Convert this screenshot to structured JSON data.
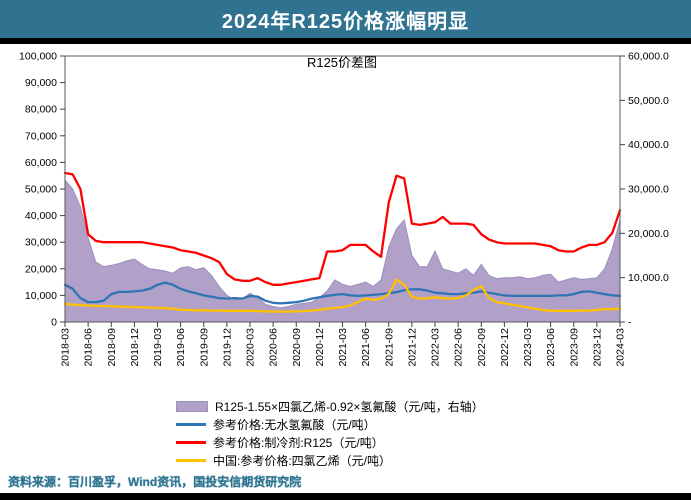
{
  "header": {
    "title": "2024年R125价格涨幅明显"
  },
  "source": {
    "text": "资料来源：百川盈孚，Wind资讯，国投安信期货研究院"
  },
  "theme": {
    "header_bg": "#2F7391",
    "header_text": "#FFFFFF",
    "divider": "#000000",
    "source_text": "#2E7490",
    "plot_border": "#595959",
    "axis_text": "#000000"
  },
  "chart_data": {
    "type": "line+area",
    "title": "R125价差图",
    "grid": false,
    "legend_position": "bottom",
    "x_label_rotation": -90,
    "x_tick_labels": [
      "2018-03",
      "2018-06",
      "2018-09",
      "2018-12",
      "2019-03",
      "2019-06",
      "2019-09",
      "2019-12",
      "2020-03",
      "2020-06",
      "2020-09",
      "2020-12",
      "2021-03",
      "2021-06",
      "2021-09",
      "2021-12",
      "2022-03",
      "2022-06",
      "2022-09",
      "2022-12",
      "2023-03",
      "2023-06",
      "2023-09",
      "2023-12",
      "2024-03"
    ],
    "months_per_tick": 3,
    "left_axis": {
      "min": 0,
      "max": 100000,
      "ticks": [
        {
          "value": 0,
          "label": "0"
        },
        {
          "value": 10000,
          "label": "10,000"
        },
        {
          "value": 20000,
          "label": "20,000"
        },
        {
          "value": 30000,
          "label": "30,000"
        },
        {
          "value": 40000,
          "label": "40,000"
        },
        {
          "value": 50000,
          "label": "50,000"
        },
        {
          "value": 60000,
          "label": "60,000"
        },
        {
          "value": 70000,
          "label": "70,000"
        },
        {
          "value": 80000,
          "label": "80,000"
        },
        {
          "value": 90000,
          "label": "90,000"
        },
        {
          "value": 100000,
          "label": "100,000"
        }
      ]
    },
    "right_axis": {
      "min": 0,
      "max": 60000,
      "ticks": [
        {
          "value": 0,
          "label": "-"
        },
        {
          "value": 10000,
          "label": "10,000.0"
        },
        {
          "value": 20000,
          "label": "20,000.0"
        },
        {
          "value": 30000,
          "label": "30,000.0"
        },
        {
          "value": 40000,
          "label": "40,000.0"
        },
        {
          "value": 50000,
          "label": "50,000.0"
        },
        {
          "value": 60000,
          "label": "60,000.0"
        }
      ]
    },
    "series": [
      {
        "name": "R125-1.55×四氯乙烯-0.92×氢氟酸（元/吨，右轴）",
        "type": "area",
        "axis": "right",
        "color": "#B1A0C7",
        "edge_color": "#9C92C0",
        "values": [
          32000,
          30000,
          26000,
          19000,
          13500,
          12500,
          12800,
          13200,
          13800,
          14200,
          13000,
          12000,
          11800,
          11500,
          11000,
          12200,
          12500,
          11800,
          12300,
          10500,
          8000,
          6000,
          5000,
          5200,
          6500,
          5500,
          4000,
          3500,
          3200,
          3500,
          4000,
          4200,
          4500,
          5500,
          7000,
          9500,
          8500,
          8000,
          8500,
          9000,
          8000,
          9500,
          17000,
          21000,
          23000,
          15000,
          12500,
          12500,
          16000,
          12000,
          11500,
          11000,
          12000,
          10500,
          13000,
          10500,
          9800,
          10000,
          10000,
          10200,
          9800,
          10000,
          10500,
          10800,
          9000,
          9500,
          10000,
          9600,
          9800,
          10000,
          12000,
          16500,
          23000
        ]
      },
      {
        "name": "参考价格:无水氢氟酸（元/吨）",
        "type": "line",
        "axis": "left",
        "color": "#2E75B6",
        "values": [
          14000,
          12500,
          9000,
          7500,
          7500,
          8000,
          10500,
          11300,
          11300,
          11500,
          11800,
          12500,
          14000,
          14800,
          14000,
          12500,
          11500,
          10800,
          10000,
          9500,
          9000,
          8800,
          9000,
          8800,
          9800,
          9500,
          8000,
          7200,
          7000,
          7200,
          7500,
          8000,
          8800,
          9300,
          9800,
          10200,
          10500,
          10000,
          9800,
          10000,
          10200,
          10500,
          10800,
          11200,
          12000,
          12300,
          12300,
          11800,
          11000,
          10800,
          10500,
          10500,
          10800,
          11000,
          11500,
          11000,
          10500,
          10000,
          9800,
          9800,
          9800,
          9800,
          9800,
          9800,
          10000,
          10000,
          10500,
          11300,
          11500,
          11000,
          10500,
          10000,
          9800
        ]
      },
      {
        "name": "参考价格:制冷剂:R125（元/吨）",
        "type": "line",
        "axis": "left",
        "color": "#FF0000",
        "values": [
          56000,
          55500,
          50000,
          33000,
          30500,
          30000,
          30000,
          30000,
          30000,
          30000,
          30000,
          29500,
          29000,
          28500,
          28000,
          27000,
          26500,
          26000,
          25000,
          24000,
          22500,
          18000,
          16000,
          15500,
          15500,
          16500,
          15000,
          14000,
          14000,
          14500,
          15000,
          15500,
          16000,
          16500,
          26500,
          26500,
          27000,
          29000,
          29000,
          29000,
          26500,
          24500,
          45000,
          55000,
          54000,
          37000,
          36500,
          37000,
          37500,
          39500,
          37000,
          37000,
          37000,
          36500,
          33000,
          31000,
          30000,
          29500,
          29500,
          29500,
          29500,
          29500,
          29000,
          28500,
          27000,
          26500,
          26500,
          28000,
          29000,
          29000,
          30000,
          33500,
          42000
        ]
      },
      {
        "name": "中国:参考价格:四氯乙烯（元/吨）",
        "type": "line",
        "axis": "left",
        "color": "#FFC000",
        "values": [
          6800,
          6500,
          6300,
          6200,
          6000,
          6000,
          5900,
          5800,
          5700,
          5600,
          5500,
          5400,
          5300,
          5200,
          5000,
          4600,
          4500,
          4400,
          4400,
          4300,
          4300,
          4200,
          4200,
          4200,
          4200,
          4100,
          4000,
          3900,
          3900,
          3900,
          4000,
          4100,
          4300,
          4600,
          5000,
          5300,
          5600,
          6200,
          7500,
          8800,
          8300,
          8800,
          10500,
          16000,
          14000,
          9500,
          8800,
          9000,
          9300,
          9000,
          8800,
          9000,
          10000,
          12000,
          13500,
          9000,
          7500,
          7000,
          6500,
          6000,
          5500,
          5000,
          4500,
          4200,
          4200,
          4200,
          4200,
          4300,
          4300,
          4500,
          4800,
          4800,
          5000
        ]
      }
    ]
  }
}
